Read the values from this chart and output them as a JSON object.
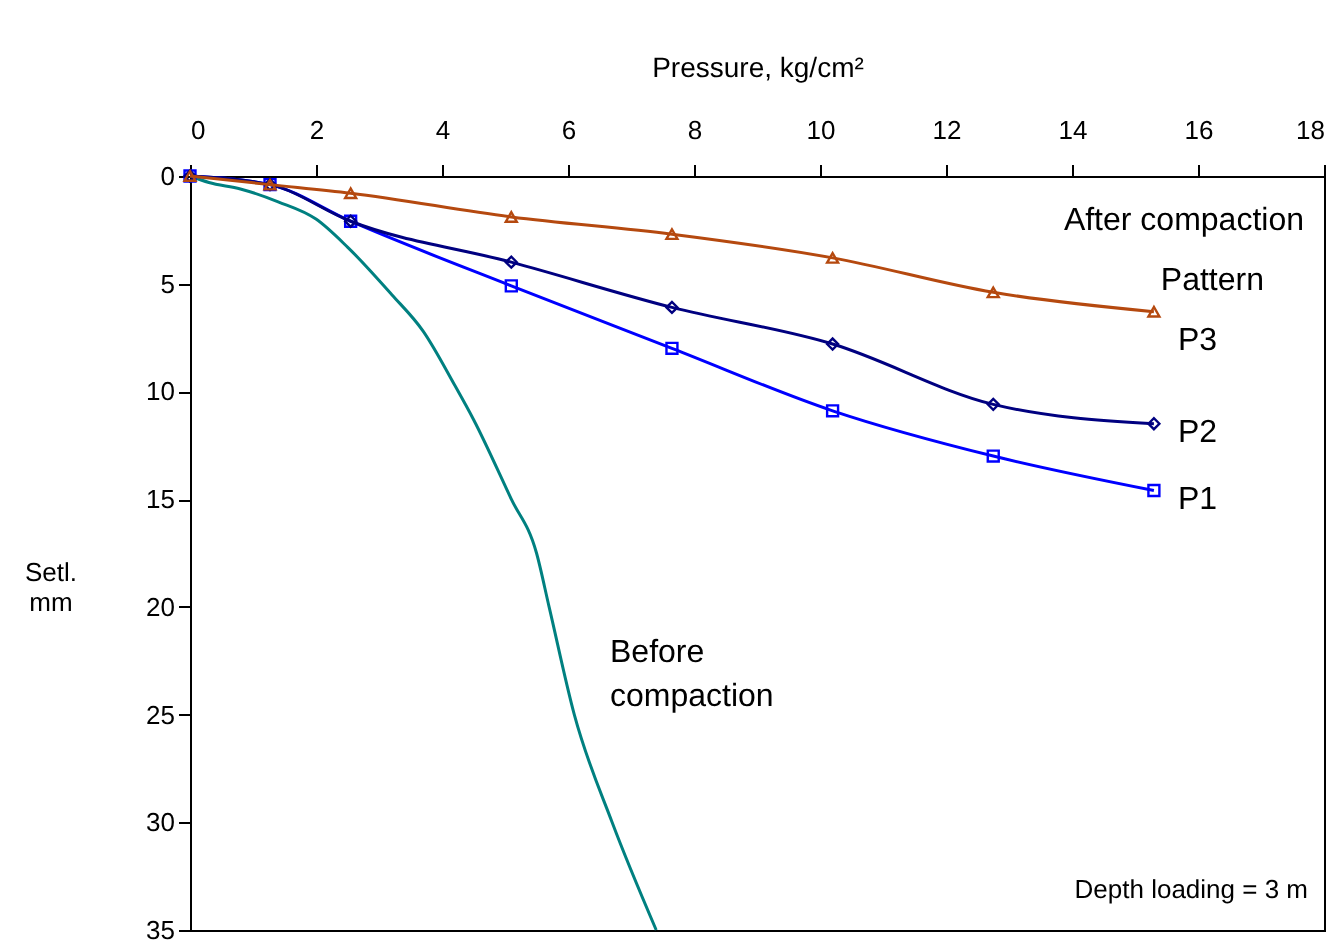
{
  "chart_data": {
    "type": "line",
    "xlabel": "Pressure, kg/cm²",
    "ylabel": "Setl. mm",
    "xlim": [
      0,
      18
    ],
    "xticks": [
      0,
      2,
      4,
      6,
      8,
      10,
      12,
      14,
      16,
      18
    ],
    "ylim": [
      35,
      0
    ],
    "yticks": [
      0,
      5,
      10,
      15,
      20,
      25,
      30,
      35
    ],
    "annotations": [
      "After compaction",
      "Pattern",
      "Depth loading = 3 m",
      "Before compaction"
    ],
    "series": [
      {
        "name": "P3",
        "color": "#b5490f",
        "marker": "triangle",
        "x": [
          0,
          1.27,
          2.55,
          5.1,
          7.65,
          10.2,
          12.75,
          15.3
        ],
        "values": [
          0,
          0.4,
          0.8,
          1.9,
          2.7,
          3.8,
          5.4,
          6.3
        ]
      },
      {
        "name": "P2",
        "color": "#000080",
        "marker": "diamond",
        "x": [
          0,
          1.27,
          2.55,
          5.1,
          7.65,
          10.2,
          12.75,
          15.3
        ],
        "values": [
          0,
          0.4,
          2.1,
          4.0,
          6.1,
          7.8,
          10.6,
          11.5
        ]
      },
      {
        "name": "P1",
        "color": "#0000ff",
        "marker": "square",
        "x": [
          0,
          1.27,
          2.55,
          5.1,
          7.65,
          10.2,
          12.75,
          15.3
        ],
        "values": [
          0,
          0.4,
          2.1,
          5.1,
          8.0,
          10.9,
          13.0,
          14.6
        ]
      },
      {
        "color": "#008080",
        "marker": "none",
        "x": [
          0,
          0.3,
          0.8,
          1.4,
          2,
          2.5,
          3.2,
          3.7,
          4.2,
          4.5,
          5.1,
          5.5,
          5.7,
          6.1,
          6.7,
          7.4
        ],
        "values": [
          0,
          0.3,
          0.6,
          1.2,
          2,
          3.3,
          5.5,
          7.2,
          9.7,
          11.3,
          15,
          17.5,
          20,
          25,
          30,
          35
        ]
      }
    ]
  }
}
